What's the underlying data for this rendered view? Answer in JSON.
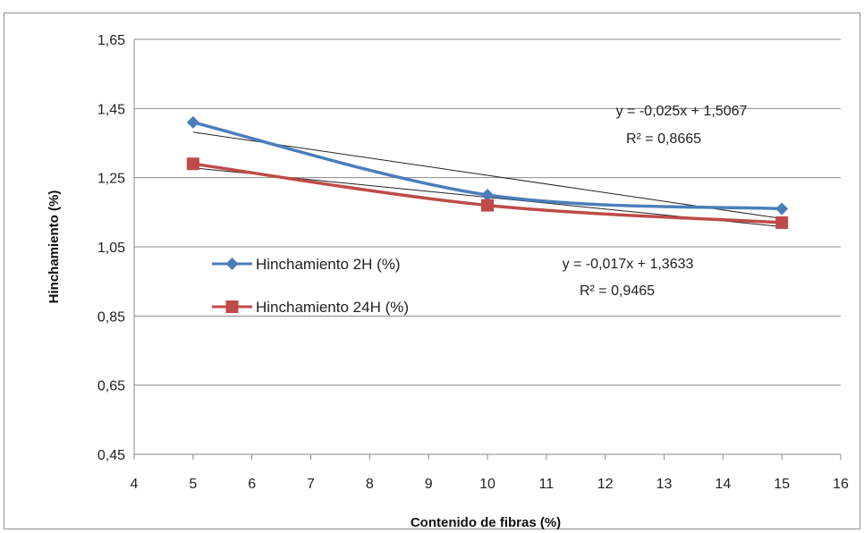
{
  "chart_data": {
    "type": "line",
    "title": "",
    "xlabel": "Contenido de fibras (%)",
    "ylabel": "Hinchamiento (%)",
    "xlim": [
      4,
      16
    ],
    "ylim": [
      0.45,
      1.65
    ],
    "x_ticks": [
      4,
      5,
      6,
      7,
      8,
      9,
      10,
      11,
      12,
      13,
      14,
      15,
      16
    ],
    "y_ticks": [
      "0,45",
      "0,65",
      "0,85",
      "1,05",
      "1,25",
      "1,45",
      "1,65"
    ],
    "y_tick_values": [
      0.45,
      0.65,
      0.85,
      1.05,
      1.25,
      1.45,
      1.65
    ],
    "grid": "horizontal",
    "legend_position": "center-left",
    "series": [
      {
        "name": "Hinchamiento 2H (%)",
        "color": "#4a7ebb",
        "marker": "diamond",
        "x": [
          5,
          10,
          15
        ],
        "y": [
          1.41,
          1.2,
          1.16
        ],
        "trendline": {
          "slope": -0.025,
          "intercept": 1.5067,
          "equation": "y = -0,025x + 1,5067",
          "r2": "R² = 0,8665"
        }
      },
      {
        "name": "Hinchamiento 24H (%)",
        "color": "#be4b48",
        "marker": "square",
        "x": [
          5,
          10,
          15
        ],
        "y": [
          1.29,
          1.17,
          1.12
        ],
        "trendline": {
          "slope": -0.017,
          "intercept": 1.3633,
          "equation": "y = -0,017x + 1,3633",
          "r2": "R² = 0,9465"
        }
      }
    ]
  }
}
